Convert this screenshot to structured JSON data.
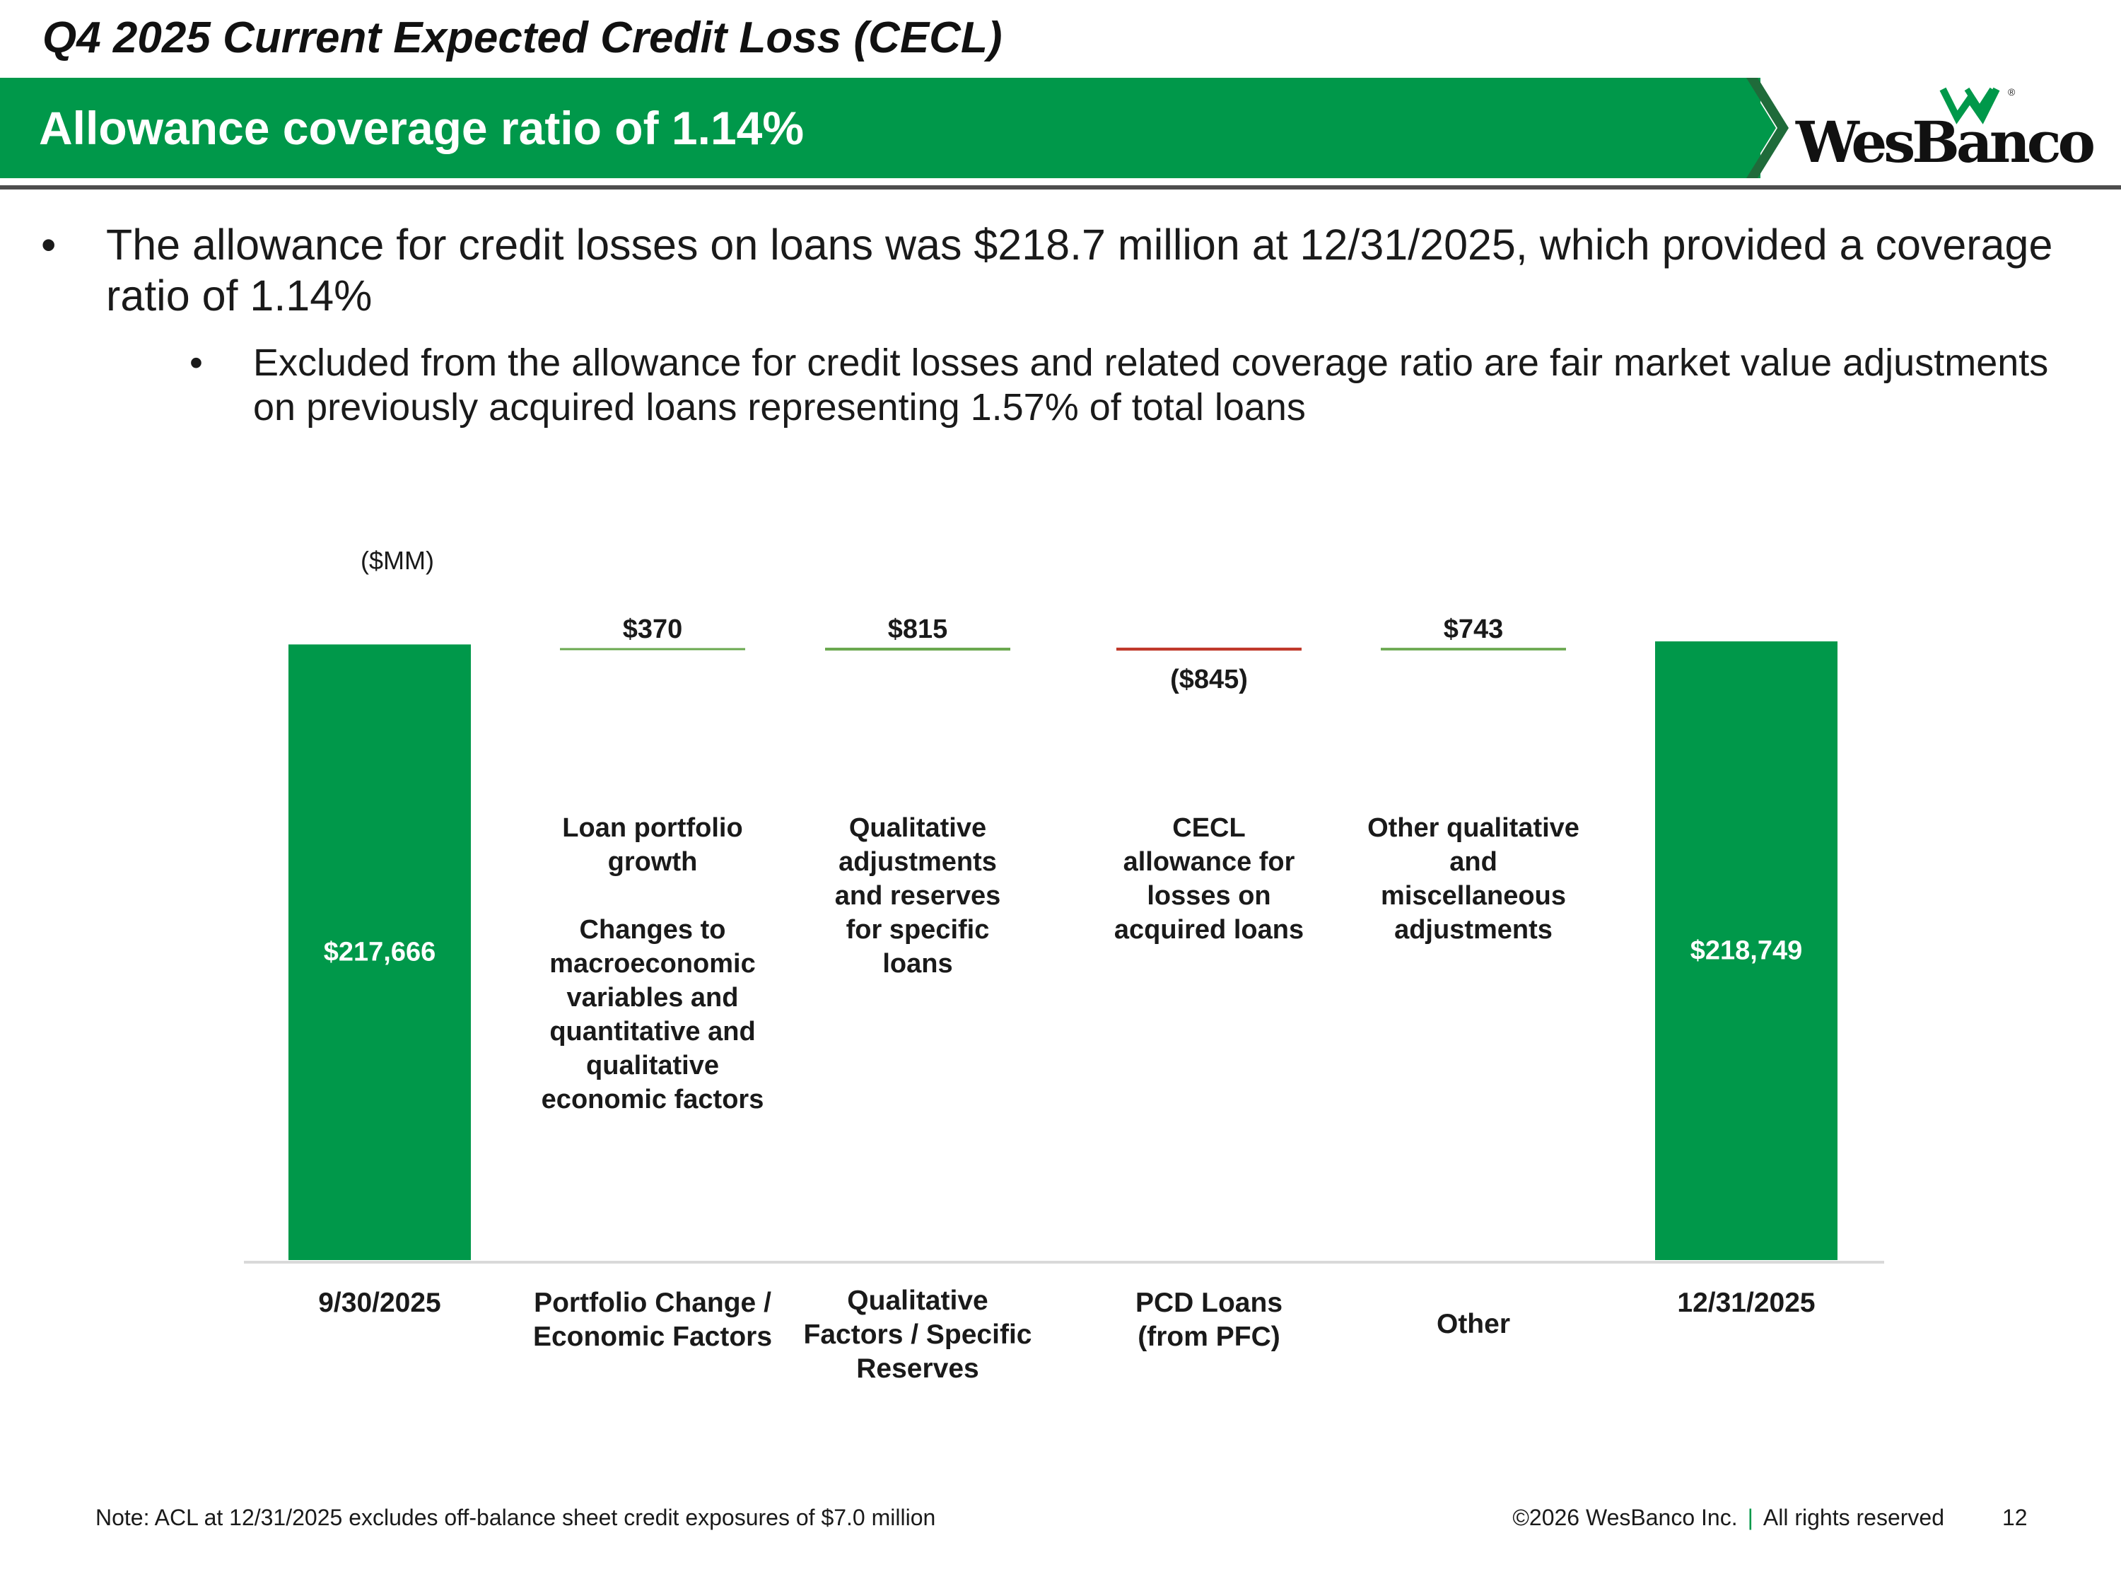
{
  "header": {
    "title": "Q4 2025 Current Expected Credit Loss (CECL)",
    "banner": "Allowance coverage ratio of 1.14%",
    "logo_text": "WesBanco",
    "logo_mark": "®"
  },
  "bullets": {
    "main": "The allowance for credit losses on loans was $218.7 million at 12/31/2025, which provided a coverage ratio of 1.14%",
    "sub": "Excluded from the allowance for credit losses and related coverage ratio are fair market value adjustments on previously acquired loans representing 1.57% of total loans",
    "dot": "•"
  },
  "chart_data": {
    "type": "bar",
    "subtype": "waterfall",
    "unit_label": "($MM)",
    "categories": [
      "9/30/2025",
      "Portfolio Change / Economic Factors",
      "Qualitative Factors / Specific Reserves",
      "PCD Loans (from PFC)",
      "Other",
      "12/31/2025"
    ],
    "category_lines": [
      [
        "9/30/2025"
      ],
      [
        "Portfolio Change /",
        "Economic Factors"
      ],
      [
        "Qualitative",
        "Factors / Specific",
        "Reserves"
      ],
      [
        "PCD Loans",
        "(from PFC)"
      ],
      [
        "Other"
      ],
      [
        "12/31/2025"
      ]
    ],
    "values": [
      217666,
      370,
      815,
      -845,
      743,
      218749
    ],
    "kinds": [
      "total",
      "delta",
      "delta",
      "delta",
      "delta",
      "total"
    ],
    "value_labels": [
      "$217,666",
      "$370",
      "$815",
      "($845)",
      "$743",
      "$218,749"
    ],
    "descriptions": [
      [],
      [
        "Loan portfolio",
        "growth",
        "",
        "Changes to",
        "macroeconomic",
        "variables and",
        "quantitative and",
        "qualitative",
        "economic factors"
      ],
      [
        "Qualitative",
        "adjustments",
        "and reserves",
        "for specific",
        "loans"
      ],
      [
        "CECL",
        "allowance for",
        "losses on",
        "acquired loans"
      ],
      [
        "Other qualitative",
        "and",
        "miscellaneous",
        "adjustments"
      ],
      []
    ],
    "colors": {
      "total": "#00984a",
      "increase": "#6aa84f",
      "decrease": "#c0392b",
      "axis": "#d9d9d9"
    }
  },
  "footer": {
    "note": "Note: ACL at 12/31/2025 excludes off-balance sheet credit exposures of $7.0 million",
    "copyright": "©2026 WesBanco Inc.",
    "separator": "|",
    "rights": "All rights reserved",
    "page": "12"
  }
}
